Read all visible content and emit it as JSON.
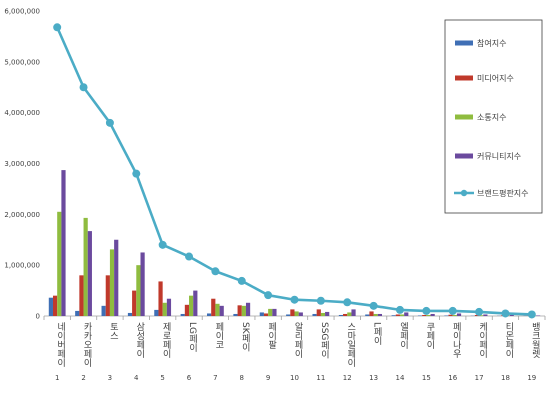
{
  "chart_data": {
    "type": "bar",
    "ylim": [
      0,
      6000000
    ],
    "y_ticks": [
      "0",
      "1,000,000",
      "2,000,000",
      "3,000,000",
      "4,000,000",
      "5,000,000",
      "6,000,000"
    ],
    "y_tick_values": [
      0,
      1000000,
      2000000,
      3000000,
      4000000,
      5000000,
      6000000
    ],
    "categories": [
      "네이버페이",
      "카카오페이",
      "토스",
      "삼성페이",
      "제로페이",
      "LG페이",
      "페이코",
      "SK페이",
      "페이팔",
      "알리페이",
      "SSG페이",
      "스마일페이",
      "L페이",
      "엘페이",
      "쿠페이",
      "페이나우",
      "케이페이",
      "티몬페이",
      "뱅크월렛"
    ],
    "category_numbers": [
      "1",
      "2",
      "3",
      "4",
      "5",
      "6",
      "7",
      "8",
      "9",
      "10",
      "11",
      "12",
      "13",
      "14",
      "15",
      "16",
      "17",
      "18",
      "19"
    ],
    "series": [
      {
        "name": "참여지수",
        "color": "#3f6fb5",
        "values": [
          360000,
          100000,
          200000,
          60000,
          120000,
          40000,
          50000,
          40000,
          70000,
          30000,
          40000,
          20000,
          30000,
          15000,
          10000,
          10000,
          5000,
          5000,
          3000
        ]
      },
      {
        "name": "미디어지수",
        "color": "#c0392b",
        "values": [
          400000,
          800000,
          800000,
          500000,
          680000,
          220000,
          340000,
          210000,
          50000,
          130000,
          130000,
          40000,
          90000,
          30000,
          20000,
          25000,
          20000,
          15000,
          5000
        ]
      },
      {
        "name": "소통지수",
        "color": "#8fbc3f",
        "values": [
          2050000,
          1930000,
          1310000,
          1000000,
          260000,
          400000,
          240000,
          200000,
          140000,
          90000,
          60000,
          70000,
          40000,
          30000,
          20000,
          20000,
          15000,
          10000,
          5000
        ]
      },
      {
        "name": "커뮤니티지수",
        "color": "#6b4a9e",
        "values": [
          2870000,
          1670000,
          1500000,
          1250000,
          340000,
          500000,
          200000,
          260000,
          140000,
          70000,
          80000,
          130000,
          40000,
          70000,
          40000,
          50000,
          30000,
          20000,
          10000
        ]
      },
      {
        "name": "브랜드평판지수",
        "color": "#4bacc6",
        "type": "line",
        "values": [
          5680000,
          4500000,
          3800000,
          2800000,
          1400000,
          1170000,
          880000,
          690000,
          410000,
          320000,
          300000,
          270000,
          200000,
          120000,
          100000,
          100000,
          80000,
          50000,
          30000
        ]
      }
    ]
  }
}
